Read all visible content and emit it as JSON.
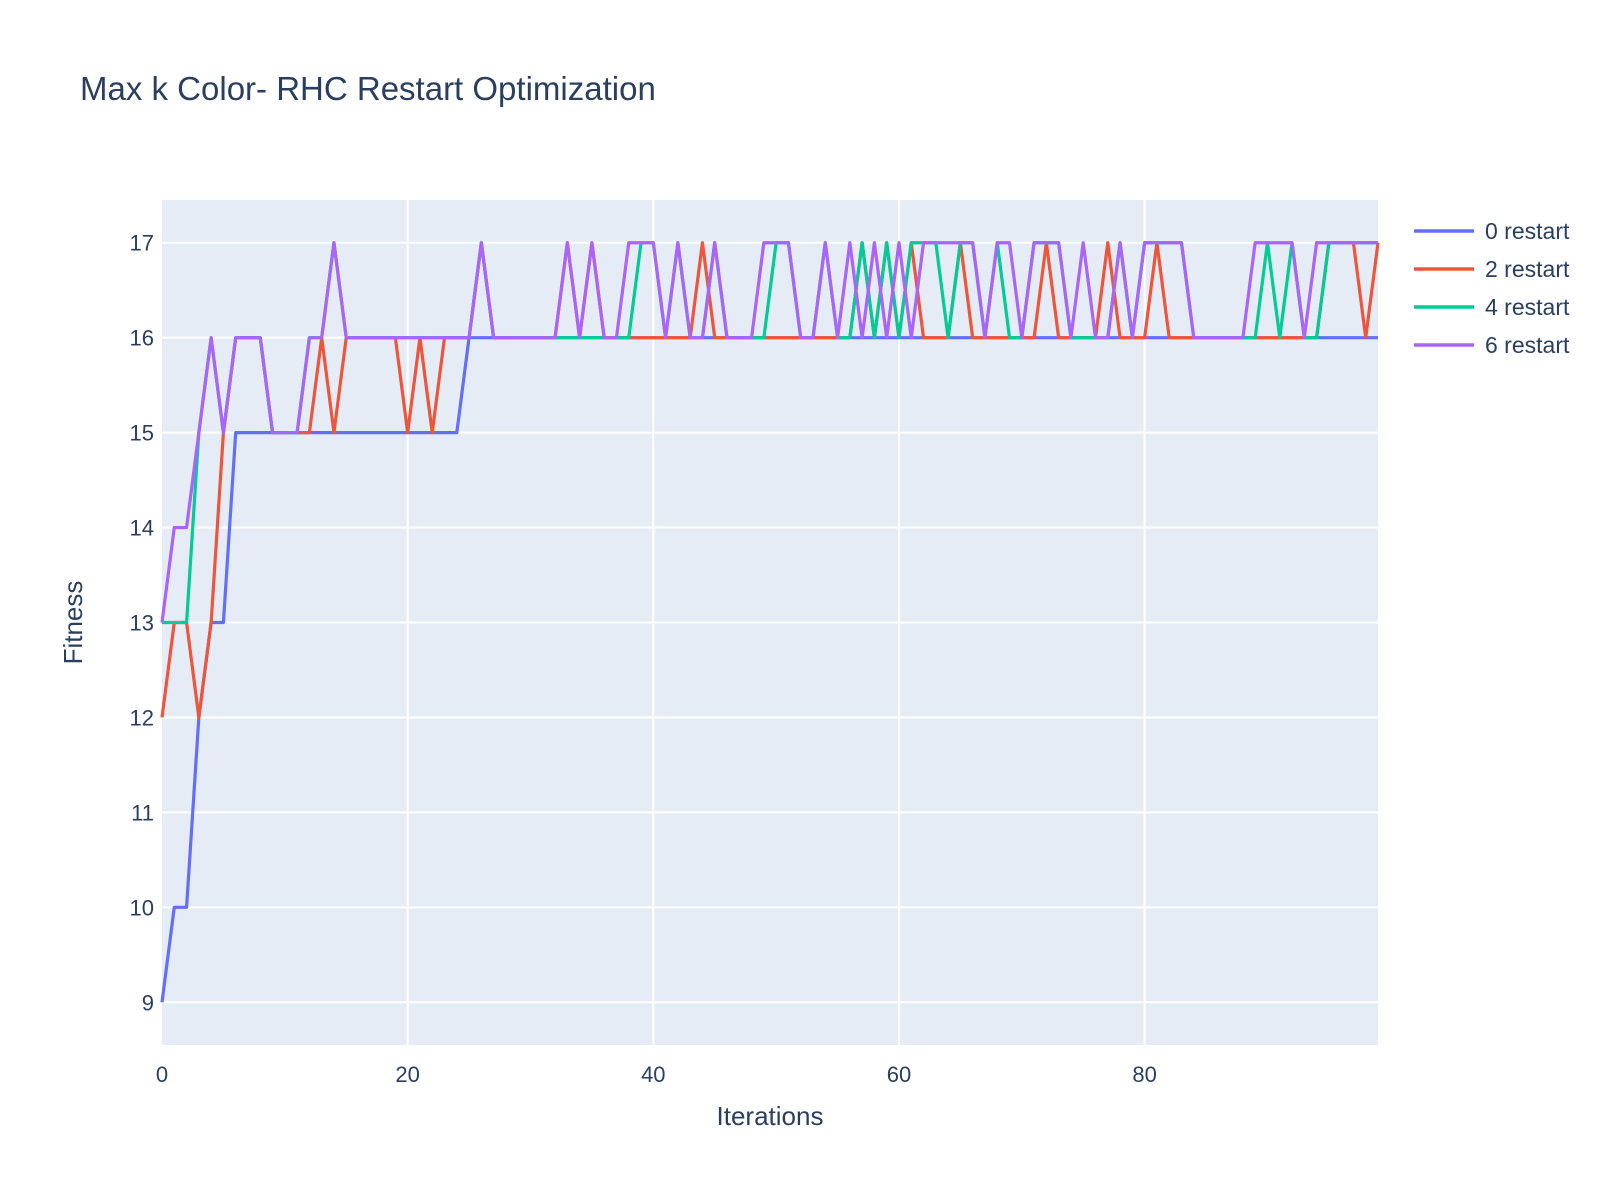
{
  "chart_data": {
    "type": "line",
    "title": "Max k Color- RHC Restart Optimization",
    "xlabel": "Iterations",
    "ylabel": "Fitness",
    "xlim": [
      0,
      99
    ],
    "ylim": [
      8.55,
      17.45
    ],
    "x_ticks": [
      0,
      20,
      40,
      60,
      80
    ],
    "y_ticks": [
      9,
      10,
      11,
      12,
      13,
      14,
      15,
      16,
      17
    ],
    "grid": true,
    "legend_position": "top-right",
    "series": [
      {
        "name": "0 restart",
        "color": "#636efa",
        "values": [
          9,
          10,
          10,
          12,
          13,
          13,
          15,
          15,
          15,
          15,
          15,
          15,
          15,
          15,
          15,
          15,
          15,
          15,
          15,
          15,
          15,
          15,
          15,
          15,
          15,
          16,
          16,
          16,
          16,
          16,
          16,
          16,
          16,
          16,
          16,
          16,
          16,
          16,
          16,
          16,
          16,
          16,
          16,
          16,
          16,
          16,
          16,
          16,
          16,
          16,
          16,
          16,
          16,
          16,
          16,
          16,
          16,
          16,
          16,
          16,
          16,
          16,
          16,
          16,
          16,
          16,
          16,
          16,
          16,
          16,
          16,
          16,
          16,
          16,
          16,
          16,
          16,
          16,
          16,
          16,
          16,
          16,
          16,
          16,
          16,
          16,
          16,
          16,
          16,
          16,
          16,
          16,
          16,
          16,
          16,
          16,
          16,
          16,
          16,
          16
        ]
      },
      {
        "name": "2 restart",
        "color": "#ef553b",
        "values": [
          12,
          13,
          13,
          12,
          13,
          15,
          16,
          16,
          16,
          15,
          15,
          15,
          15,
          16,
          15,
          16,
          16,
          16,
          16,
          16,
          15,
          16,
          15,
          16,
          16,
          16,
          17,
          16,
          16,
          16,
          16,
          16,
          16,
          17,
          16,
          17,
          16,
          16,
          16,
          16,
          16,
          16,
          16,
          16,
          17,
          16,
          16,
          16,
          16,
          16,
          16,
          16,
          16,
          16,
          16,
          16,
          16,
          17,
          16,
          17,
          16,
          17,
          16,
          16,
          16,
          17,
          16,
          16,
          16,
          16,
          16,
          16,
          17,
          16,
          16,
          16,
          16,
          17,
          16,
          16,
          16,
          17,
          16,
          16,
          16,
          16,
          16,
          16,
          16,
          16,
          16,
          16,
          16,
          16,
          16,
          17,
          17,
          17,
          16,
          17
        ]
      },
      {
        "name": "4 restart",
        "color": "#00cc96",
        "values": [
          13,
          13,
          13,
          15,
          16,
          15,
          16,
          16,
          16,
          15,
          15,
          15,
          16,
          16,
          17,
          16,
          16,
          16,
          16,
          16,
          16,
          16,
          16,
          16,
          16,
          16,
          17,
          16,
          16,
          16,
          16,
          16,
          16,
          16,
          16,
          16,
          16,
          16,
          16,
          17,
          17,
          16,
          17,
          16,
          16,
          17,
          16,
          16,
          16,
          16,
          17,
          17,
          16,
          16,
          17,
          16,
          16,
          17,
          16,
          17,
          16,
          17,
          17,
          17,
          16,
          17,
          17,
          16,
          17,
          16,
          16,
          17,
          17,
          17,
          16,
          16,
          16,
          16,
          17,
          16,
          17,
          17,
          17,
          17,
          16,
          16,
          16,
          16,
          16,
          16,
          17,
          16,
          17,
          16,
          16,
          17,
          17,
          17,
          17,
          17
        ]
      },
      {
        "name": "6 restart",
        "color": "#ab63fa",
        "values": [
          13,
          14,
          14,
          15,
          16,
          15,
          16,
          16,
          16,
          15,
          15,
          15,
          16,
          16,
          17,
          16,
          16,
          16,
          16,
          16,
          16,
          16,
          16,
          16,
          16,
          16,
          17,
          16,
          16,
          16,
          16,
          16,
          16,
          17,
          16,
          17,
          16,
          16,
          17,
          17,
          17,
          16,
          17,
          16,
          16,
          17,
          16,
          16,
          16,
          17,
          17,
          17,
          16,
          16,
          17,
          16,
          17,
          16,
          17,
          16,
          17,
          16,
          17,
          17,
          17,
          17,
          17,
          16,
          17,
          17,
          16,
          17,
          17,
          17,
          16,
          17,
          16,
          16,
          17,
          16,
          17,
          17,
          17,
          17,
          16,
          16,
          16,
          16,
          16,
          17,
          17,
          17,
          17,
          16,
          17,
          17,
          17,
          17,
          17,
          17
        ]
      }
    ]
  }
}
